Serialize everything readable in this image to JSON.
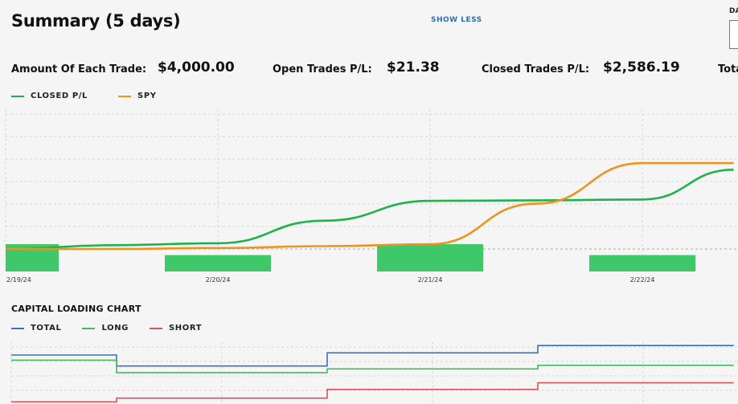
{
  "summary": {
    "title": "Summary (5 days)",
    "show_less_label": "SHOW LESS",
    "corner_label": "DA"
  },
  "stats": [
    {
      "label": "Amount Of Each Trade:",
      "value": "$4,000.00"
    },
    {
      "label": "Open Trades P/L:",
      "value": "$21.38"
    },
    {
      "label": "Closed Trades P/L:",
      "value": "$2,586.19"
    },
    {
      "label": "Tota",
      "value": ""
    }
  ],
  "colors": {
    "closed_pl": "#1db34a",
    "spy": "#f0921e",
    "bar": "#3fc86a",
    "total": "#3a6fc4",
    "long": "#3cbf5c",
    "short": "#d9545d",
    "grid": "#d8d8d8"
  },
  "chart_data": [
    {
      "type": "line",
      "legend": [
        {
          "name": "CLOSED P/L"
        },
        {
          "name": "SPY"
        }
      ],
      "legend_position": "top-left",
      "grid": true,
      "x_ticks": [
        "2/19/24",
        "2/20/24",
        "2/21/24",
        "2/22/24"
      ],
      "x_range": [
        0,
        3.43
      ],
      "y_range": [
        -1,
        7
      ],
      "bars": [
        {
          "x": 0,
          "value": 1.0
        },
        {
          "x": 1,
          "value": 0.6
        },
        {
          "x": 2,
          "value": 1.0
        },
        {
          "x": 3,
          "value": 0.6
        }
      ],
      "series": [
        {
          "name": "CLOSED P/L",
          "points": [
            [
              0,
              0
            ],
            [
              0.5,
              0.2
            ],
            [
              1.0,
              0.3
            ],
            [
              1.5,
              1.5
            ],
            [
              2.0,
              2.55
            ],
            [
              2.5,
              2.58
            ],
            [
              3.0,
              2.62
            ],
            [
              3.43,
              4.2
            ]
          ]
        },
        {
          "name": "SPY",
          "points": [
            [
              0,
              0
            ],
            [
              0.5,
              0.0
            ],
            [
              1.0,
              0.05
            ],
            [
              1.5,
              0.15
            ],
            [
              2.0,
              0.25
            ],
            [
              2.5,
              2.4
            ],
            [
              3.0,
              4.55
            ],
            [
              3.43,
              4.55
            ]
          ]
        }
      ]
    },
    {
      "type": "line",
      "title": "CAPITAL LOADING CHART",
      "legend": [
        {
          "name": "TOTAL"
        },
        {
          "name": "LONG"
        },
        {
          "name": "SHORT"
        }
      ],
      "legend_position": "top-left",
      "grid": true,
      "step": true,
      "x_range": [
        0,
        3.43
      ],
      "y_range": [
        0,
        10
      ],
      "series": [
        {
          "name": "TOTAL",
          "points": [
            [
              0,
              6.7
            ],
            [
              0.5,
              6.7
            ],
            [
              0.5,
              5.2
            ],
            [
              1.5,
              5.2
            ],
            [
              1.5,
              7.0
            ],
            [
              2.5,
              7.0
            ],
            [
              2.5,
              8.0
            ],
            [
              3.43,
              8.0
            ]
          ]
        },
        {
          "name": "LONG",
          "points": [
            [
              0,
              6.0
            ],
            [
              0.5,
              6.0
            ],
            [
              0.5,
              4.3
            ],
            [
              1.5,
              4.3
            ],
            [
              1.5,
              4.8
            ],
            [
              2.5,
              4.8
            ],
            [
              2.5,
              5.3
            ],
            [
              3.43,
              5.3
            ]
          ]
        },
        {
          "name": "SHORT",
          "points": [
            [
              0,
              0.3
            ],
            [
              0.5,
              0.3
            ],
            [
              0.5,
              0.8
            ],
            [
              1.5,
              0.8
            ],
            [
              1.5,
              2.0
            ],
            [
              2.5,
              2.0
            ],
            [
              2.5,
              2.9
            ],
            [
              3.43,
              2.9
            ]
          ]
        }
      ]
    }
  ]
}
